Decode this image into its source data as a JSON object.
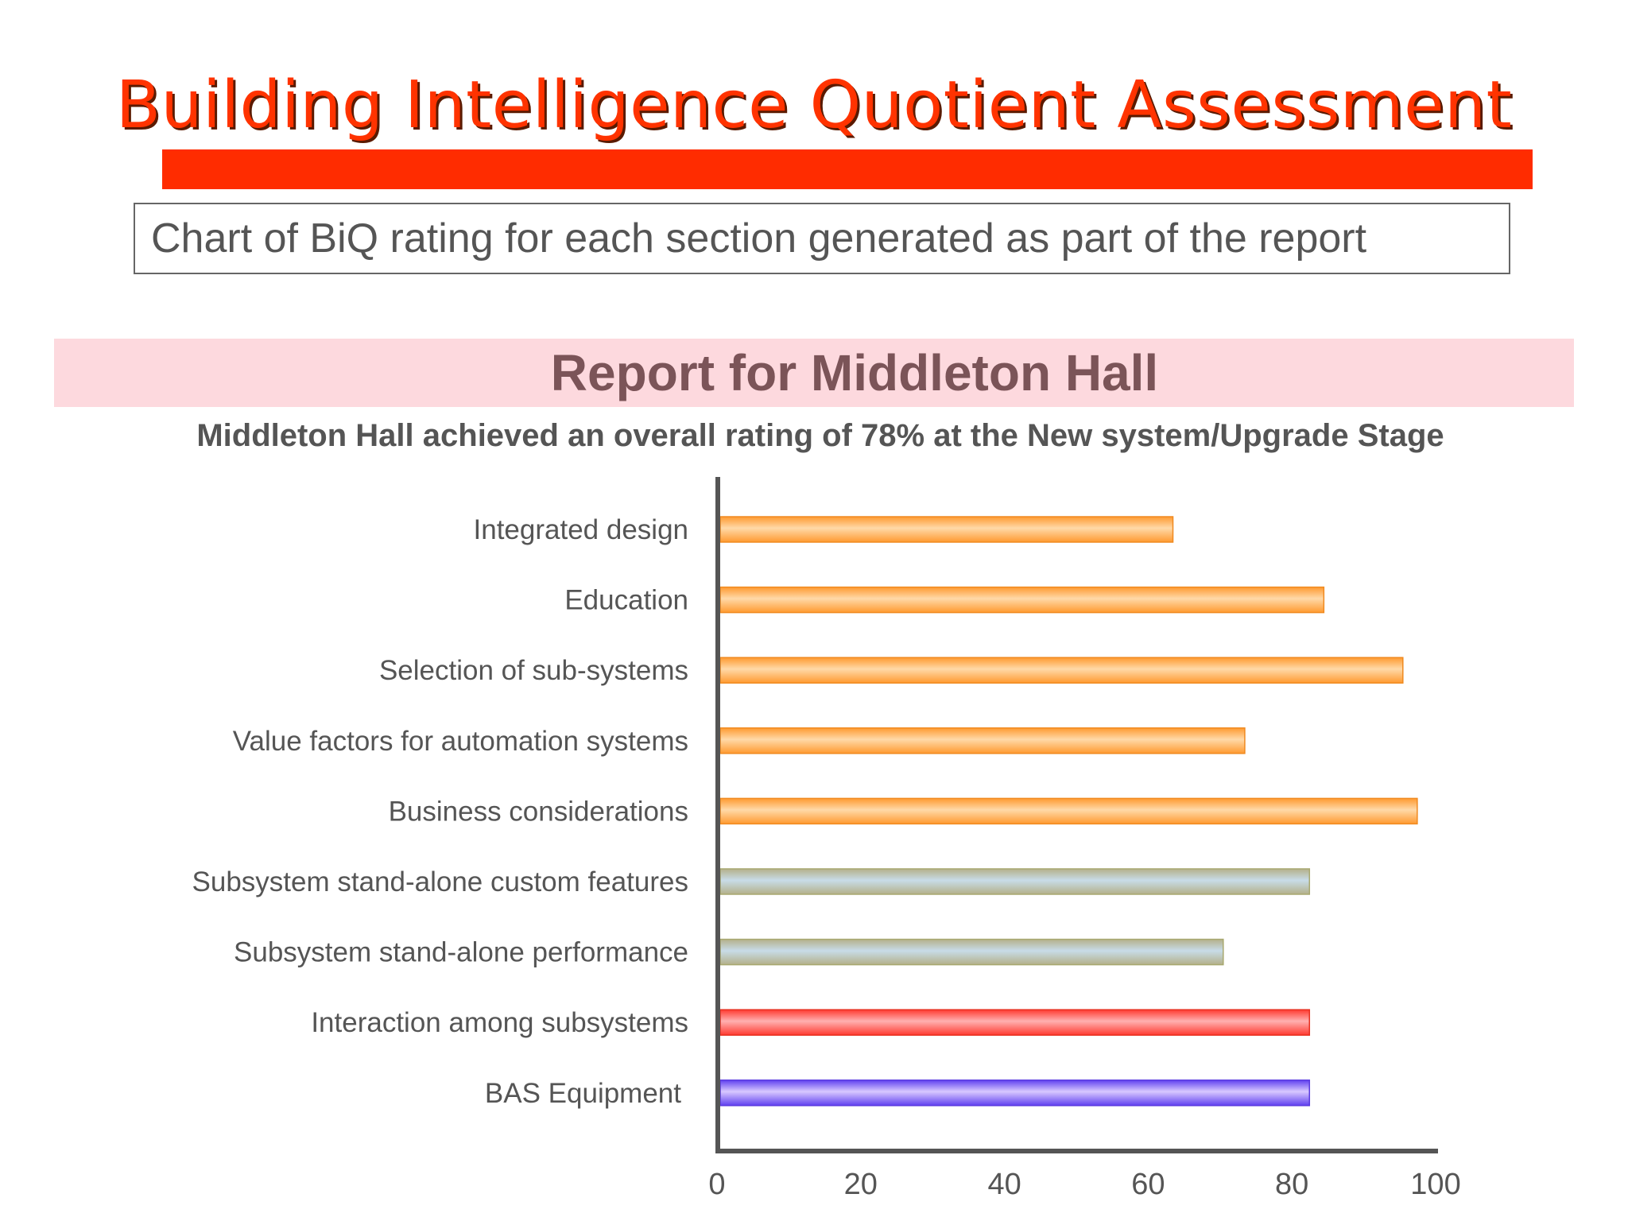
{
  "header": {
    "title": "Building Intelligence Quotient Assessment",
    "caption": "Chart of BiQ rating for each section generated as part of the report"
  },
  "report": {
    "title": "Report for Middleton Hall",
    "summary": "Middleton Hall achieved an overall rating of 78% at the New system/Upgrade Stage"
  },
  "colors": {
    "accent_red": "#ff2c00",
    "orange_bar": "#ffa040",
    "gray_bar": "#b8c4c8",
    "red_bar": "#ff5040",
    "blue_bar": "#8b5cf6"
  },
  "chart_data": {
    "type": "bar",
    "orientation": "horizontal",
    "categories": [
      "Integrated design",
      "Education",
      "Selection of sub-systems",
      "Value factors for automation systems",
      "Business considerations",
      "Subsystem stand-alone custom features",
      "Subsystem stand-alone performance",
      "Interaction among subsystems",
      "BAS Equipment"
    ],
    "values": [
      63,
      84,
      95,
      73,
      97,
      82,
      70,
      82,
      82
    ],
    "bar_colors": [
      "orange",
      "orange",
      "orange",
      "orange",
      "orange",
      "gray",
      "gray",
      "red",
      "blue"
    ],
    "xlim": [
      0,
      100
    ],
    "xticks": [
      "0",
      "20",
      "40",
      "60",
      "80",
      "100"
    ],
    "grid": false,
    "legend": "none"
  }
}
